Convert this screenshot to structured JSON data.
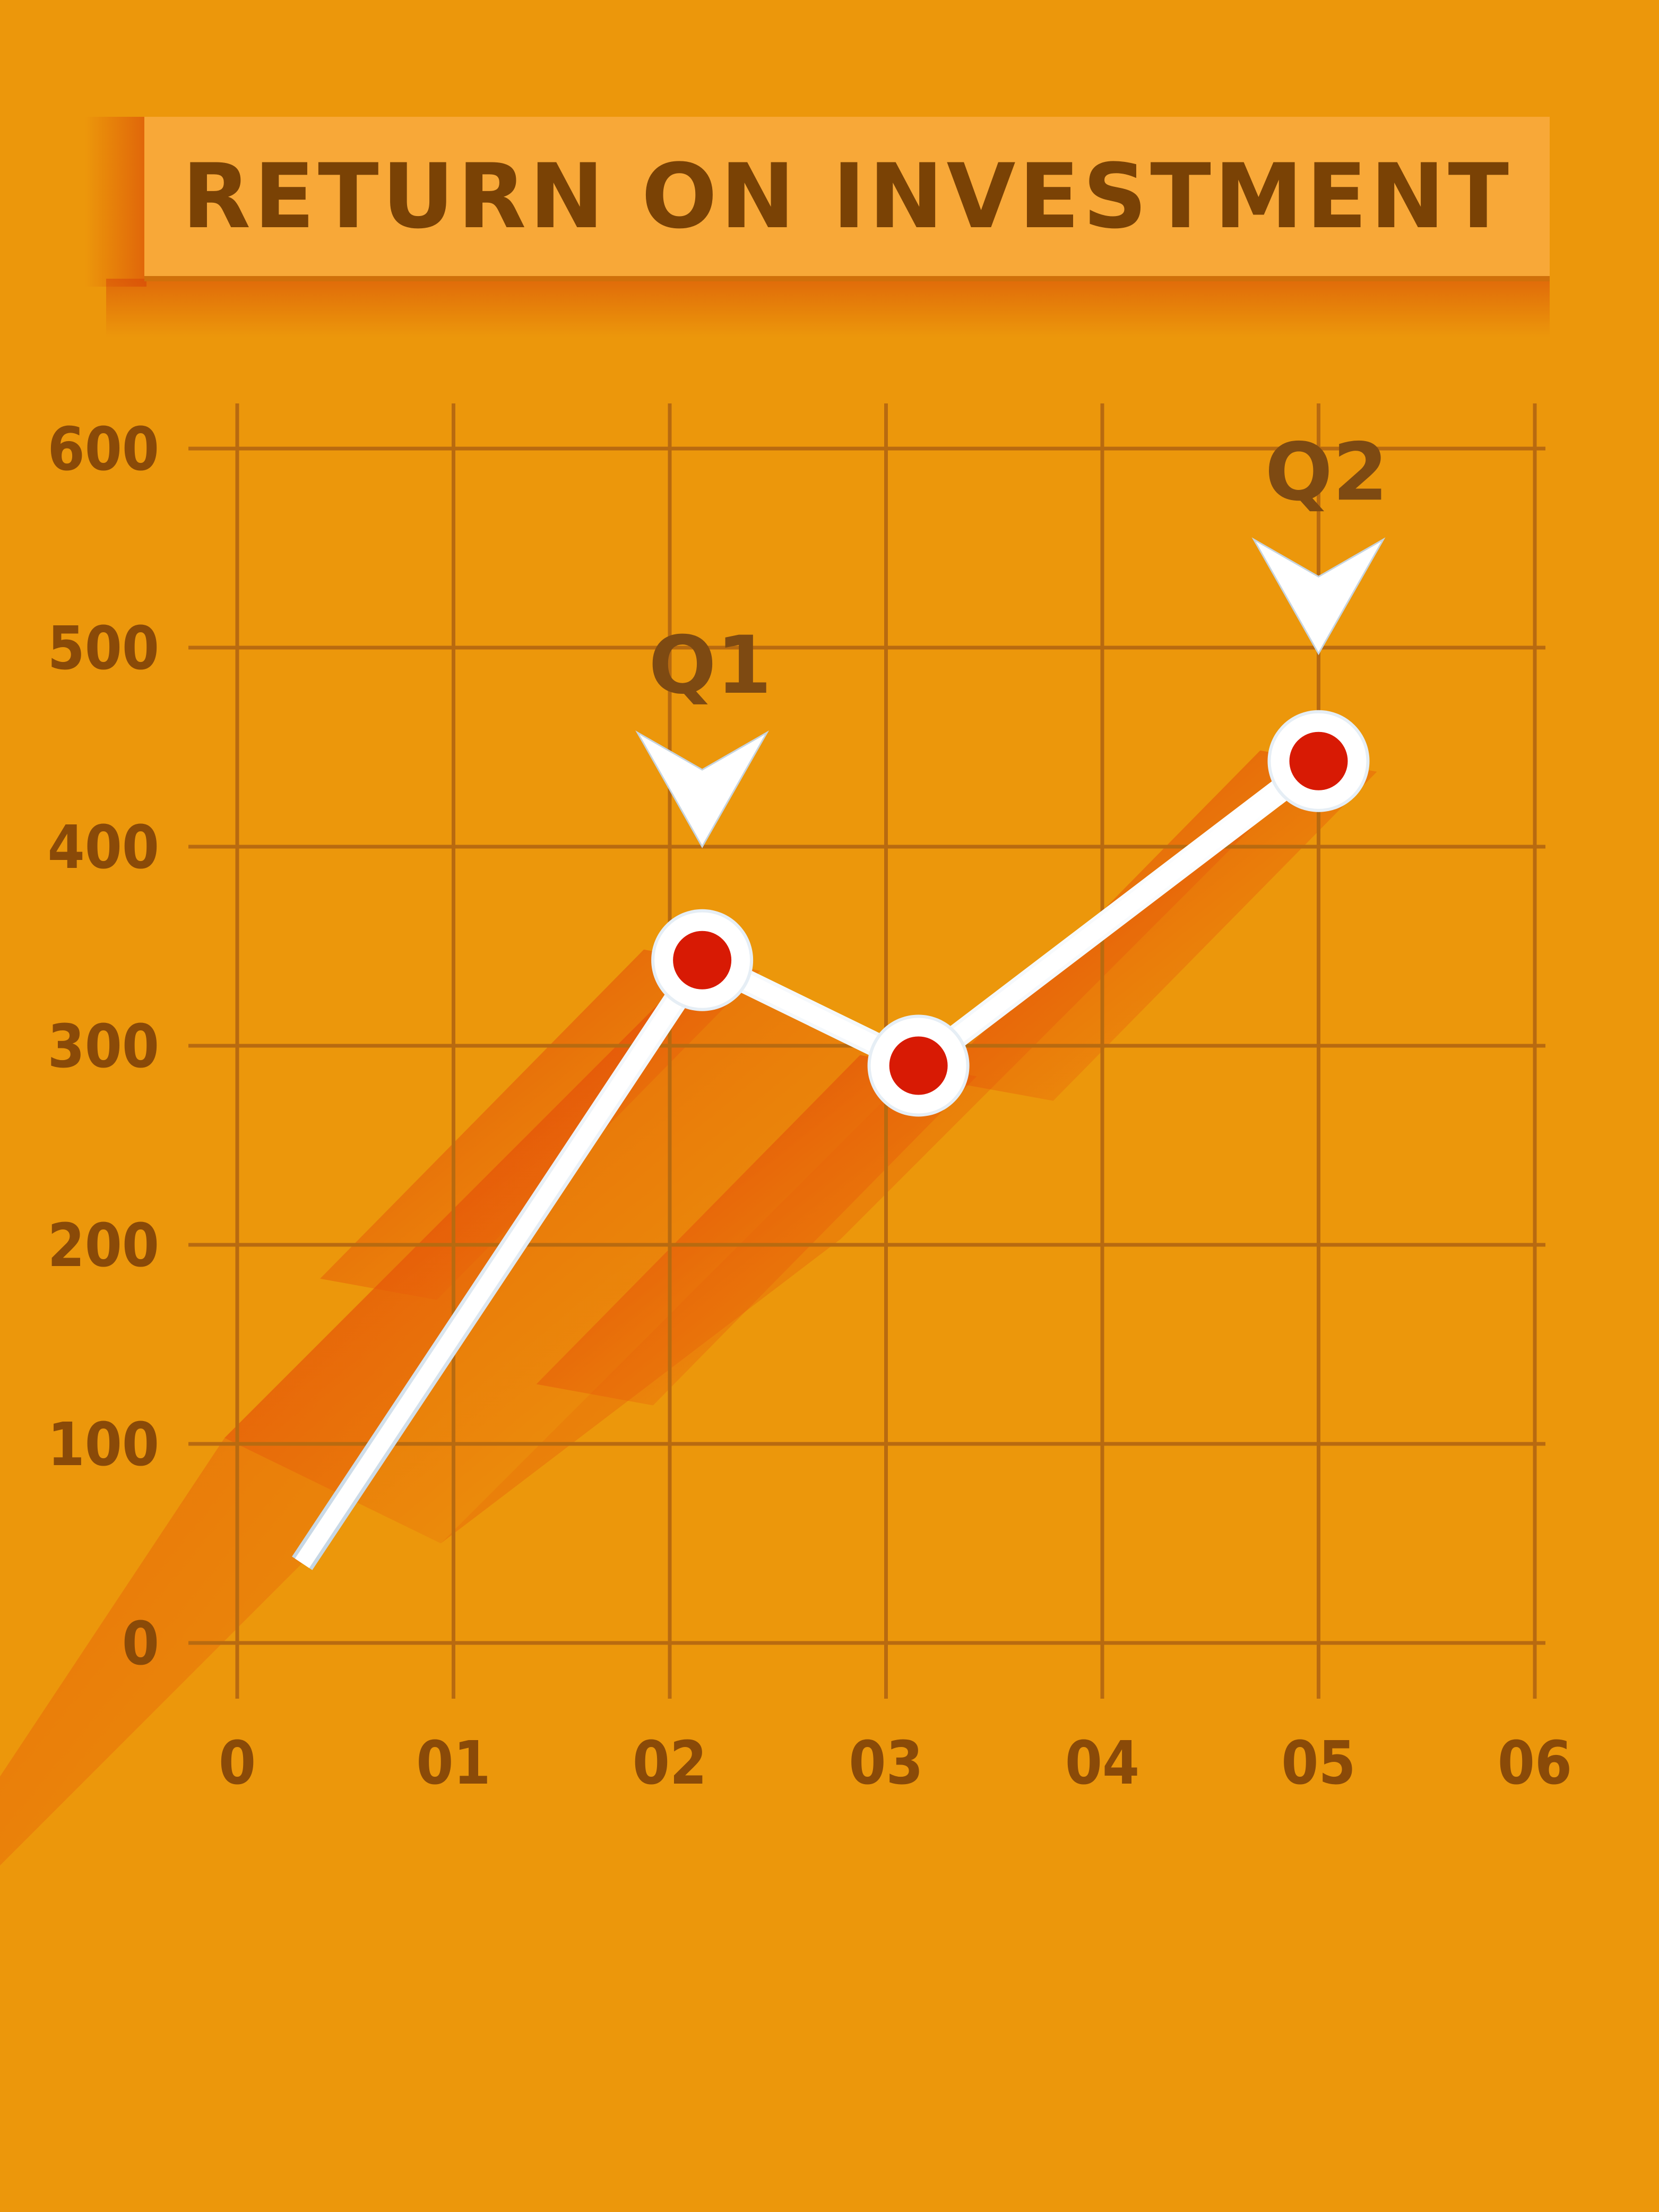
{
  "chart_data": {
    "type": "line",
    "title": "RETURN ON INVESTMENT",
    "x_ticks": [
      "0",
      "01",
      "02",
      "03",
      "04",
      "05",
      "06"
    ],
    "y_ticks": [
      "0",
      "100",
      "200",
      "300",
      "400",
      "500",
      "600"
    ],
    "xlim": [
      0,
      6
    ],
    "ylim": [
      0,
      600
    ],
    "grid": true,
    "series": [
      {
        "points": [
          {
            "x": 0.3,
            "y": 40
          },
          {
            "x": 2.15,
            "y": 343
          },
          {
            "x": 3.15,
            "y": 290
          },
          {
            "x": 5.0,
            "y": 443
          }
        ]
      }
    ],
    "annotations": [
      {
        "text": "Q1",
        "x": 2.15,
        "y": 400
      },
      {
        "text": "Q2",
        "x": 5.0,
        "y": 497
      }
    ],
    "colors": {
      "background": "#EC970B",
      "grid": "#B86A10",
      "line": "#FFFFFF",
      "marker_fill": "#D81A04",
      "shadow": "#E0300A",
      "text": "#8A4A08"
    }
  }
}
